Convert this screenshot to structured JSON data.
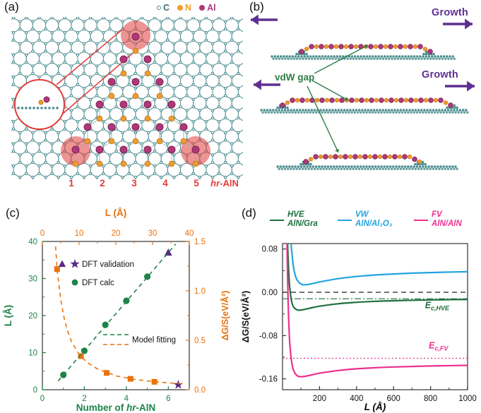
{
  "panels": {
    "a": {
      "label": "(a)",
      "legend": [
        {
          "label": "C",
          "element": "carbon",
          "filled": false
        },
        {
          "label": "N",
          "element": "nitrogen",
          "filled": true
        },
        {
          "label": "Al",
          "element": "aluminum",
          "filled": true
        }
      ],
      "site_numbers": [
        "1",
        "2",
        "3",
        "4",
        "5"
      ],
      "material": {
        "italic": "hr",
        "rest": "-AlN"
      }
    },
    "b": {
      "label": "(b)",
      "growth_label": "Growth",
      "vdw_label": "vdW gap"
    },
    "c": {
      "label": "(c)"
    },
    "d": {
      "label": "(d)"
    }
  },
  "colors": {
    "teal": "#4a8c8e",
    "orange": "#f09c2e",
    "magenta": "#b13778",
    "red": "#e23b3b",
    "purple": "#5e2f91",
    "green_text": "#2e7d46",
    "chart_green": "#1d8348",
    "chart_orange": "#e8720c",
    "blue": "#24a3e0",
    "pink": "#ee2f8f",
    "dark_green": "#1e6f3e"
  },
  "chart_data": [
    {
      "panel": "c",
      "type": "scatter",
      "axes": {
        "bottom": {
          "label_parts": {
            "pre": "Number of ",
            "italic": "hr",
            "post": "-AlN"
          },
          "range": [
            0,
            7
          ],
          "major_ticks": [
            0,
            2,
            4,
            6
          ],
          "minor_step": 1,
          "color": "#1d8348"
        },
        "left": {
          "label": "L (Å)",
          "range": [
            0,
            40
          ],
          "major_ticks": [
            0,
            10,
            20,
            30,
            40
          ],
          "minor_step": 5,
          "color": "#1d8348"
        },
        "top": {
          "label": "L (Å)",
          "range": [
            0,
            40
          ],
          "major_ticks": [
            0,
            10,
            20,
            30,
            40
          ],
          "minor_step": 5,
          "color": "#e8720c"
        },
        "right": {
          "label": "ΔG/S(eV/Å²)",
          "range": [
            0,
            1.5
          ],
          "major_ticks": [
            0,
            0.5,
            1,
            1.5
          ],
          "tick_labels": [
            "0.0",
            "0.5",
            "1.0",
            "1.5"
          ],
          "minor_step": 0.25,
          "color": "#e8720c"
        }
      },
      "series": [
        {
          "name": "DFT calc",
          "marker": "circle",
          "color": "#1d8348",
          "axes": [
            "bottom",
            "left"
          ],
          "points": [
            [
              1,
              4
            ],
            [
              2,
              10.5
            ],
            [
              3,
              17.5
            ],
            [
              4,
              24
            ],
            [
              5,
              30.5
            ]
          ]
        },
        {
          "name": "DFT validation",
          "marker": "triangle",
          "color": "#5b2a86",
          "axes": [
            "bottom",
            "left"
          ],
          "points": [
            [
              6,
              37
            ]
          ]
        },
        {
          "name": "DFT validation",
          "marker": "star",
          "color": "#5b2a86",
          "axes": [
            "top",
            "right"
          ],
          "points": [
            [
              37,
              0.05
            ]
          ]
        },
        {
          "name": "DFT calc",
          "marker": "square",
          "color": "#e8720c",
          "axes": [
            "top",
            "right"
          ],
          "points": [
            [
              4,
              1.22
            ],
            [
              10.5,
              0.34
            ],
            [
              17.5,
              0.17
            ],
            [
              24,
              0.11
            ],
            [
              30.5,
              0.08
            ]
          ]
        },
        {
          "name": "Model fitting",
          "marker": "none",
          "line": "dashed",
          "color": "#1d8348",
          "axes": [
            "bottom",
            "left"
          ],
          "points": [
            [
              0.75,
              2.35
            ],
            [
              6.35,
              39.3
            ]
          ]
        },
        {
          "name": "Model fitting",
          "marker": "none",
          "line": "dashed",
          "color": "#e8720c",
          "axes": [
            "top",
            "right"
          ],
          "points": [
            [
              3.6,
              1.45
            ],
            [
              4,
              1.22
            ],
            [
              5,
              0.91
            ],
            [
              6,
              0.71
            ],
            [
              7,
              0.58
            ],
            [
              8,
              0.48
            ],
            [
              10,
              0.36
            ],
            [
              12,
              0.28
            ],
            [
              15,
              0.21
            ],
            [
              20,
              0.14
            ],
            [
              25,
              0.105
            ],
            [
              30,
              0.082
            ],
            [
              35,
              0.067
            ],
            [
              39,
              0.058
            ]
          ]
        }
      ],
      "legend": [
        {
          "label": "DFT validation",
          "markers": [
            "triangle",
            "star"
          ],
          "color": "#5b2a86"
        },
        {
          "label": "DFT calc",
          "markers": [
            "circle"
          ],
          "color": "#1d8348"
        },
        {
          "label": "Model fitting",
          "markers": [
            "dash",
            "dash"
          ],
          "colors": [
            "#1d8348",
            "#e8720c"
          ]
        }
      ]
    },
    {
      "panel": "d",
      "type": "line",
      "xlabel": "L (Å)",
      "ylabel": "ΔG/S(eV/Å²)",
      "xlim": [
        0,
        1000
      ],
      "ylim": [
        -0.18,
        0.09
      ],
      "xticks": [
        200,
        400,
        600,
        800,
        1000
      ],
      "x_minor_step": 100,
      "yticks": [
        0.08,
        0,
        -0.08,
        -0.16
      ],
      "ytick_labels": [
        "0.08",
        "0.00",
        "-0.08",
        "-0.16"
      ],
      "y_minor_step": 0.04,
      "series": [
        {
          "name": "HVE AlN/Gra",
          "legend": {
            "line1": "HVE",
            "line2": "AlN/Gra"
          },
          "color": "#1e6f3e",
          "points": [
            [
              26,
              0.12
            ],
            [
              28,
              0.085
            ],
            [
              30,
              0.064
            ],
            [
              35,
              0.027
            ],
            [
              40,
              0.005
            ],
            [
              50,
              -0.018
            ],
            [
              60,
              -0.027
            ],
            [
              80,
              -0.0327
            ],
            [
              100,
              -0.0328
            ],
            [
              120,
              -0.0315
            ],
            [
              150,
              -0.0292
            ],
            [
              200,
              -0.0257
            ],
            [
              300,
              -0.0212
            ],
            [
              400,
              -0.0185
            ],
            [
              500,
              -0.0167
            ],
            [
              600,
              -0.0156
            ],
            [
              700,
              -0.0147
            ],
            [
              800,
              -0.0141
            ],
            [
              900,
              -0.0136
            ],
            [
              1000,
              -0.0132
            ]
          ]
        },
        {
          "name": "VW AlN/Al₂O₃",
          "legend": {
            "line1": "VW",
            "line2": "AlN/Al₂O₃"
          },
          "color": "#24a3e0",
          "points": [
            [
              44,
              0.14
            ],
            [
              47,
              0.089
            ],
            [
              50,
              0.075
            ],
            [
              60,
              0.045
            ],
            [
              70,
              0.03
            ],
            [
              80,
              0.022
            ],
            [
              100,
              0.0152
            ],
            [
              120,
              0.014
            ],
            [
              150,
              0.0152
            ],
            [
              200,
              0.019
            ],
            [
              300,
              0.0252
            ],
            [
              400,
              0.0292
            ],
            [
              500,
              0.0319
            ],
            [
              600,
              0.0338
            ],
            [
              700,
              0.0353
            ],
            [
              800,
              0.0364
            ],
            [
              900,
              0.0373
            ],
            [
              1000,
              0.038
            ]
          ]
        },
        {
          "name": "FV AlN/AlN",
          "legend": {
            "line1": "FV",
            "line2": "AlN/AlN"
          },
          "color": "#ee2f8f",
          "points": [
            [
              23,
              0.16
            ],
            [
              25,
              0.077
            ],
            [
              26,
              0.054
            ],
            [
              30,
              -0.015
            ],
            [
              35,
              -0.066
            ],
            [
              40,
              -0.098
            ],
            [
              50,
              -0.13
            ],
            [
              60,
              -0.1445
            ],
            [
              80,
              -0.1544
            ],
            [
              100,
              -0.156
            ],
            [
              120,
              -0.1553
            ],
            [
              150,
              -0.1532
            ],
            [
              200,
              -0.1495
            ],
            [
              300,
              -0.1445
            ],
            [
              400,
              -0.1414
            ],
            [
              500,
              -0.1394
            ],
            [
              600,
              -0.138
            ],
            [
              800,
              -0.1362
            ],
            [
              1000,
              -0.135
            ]
          ]
        }
      ],
      "ref_lines": [
        {
          "y": 0,
          "style": "dashed",
          "color": "#222"
        },
        {
          "y": -0.012,
          "style": "dashdot",
          "color": "#1e6f3e",
          "label": {
            "base": "E",
            "sub": "c,HVE"
          },
          "label_at": [
            770,
            -0.0295
          ]
        },
        {
          "y": -0.122,
          "style": "dotted",
          "color": "#ee2f8f",
          "label": {
            "base": "E",
            "sub": "c,FV"
          },
          "label_at": [
            790,
            -0.1035
          ]
        }
      ]
    }
  ]
}
